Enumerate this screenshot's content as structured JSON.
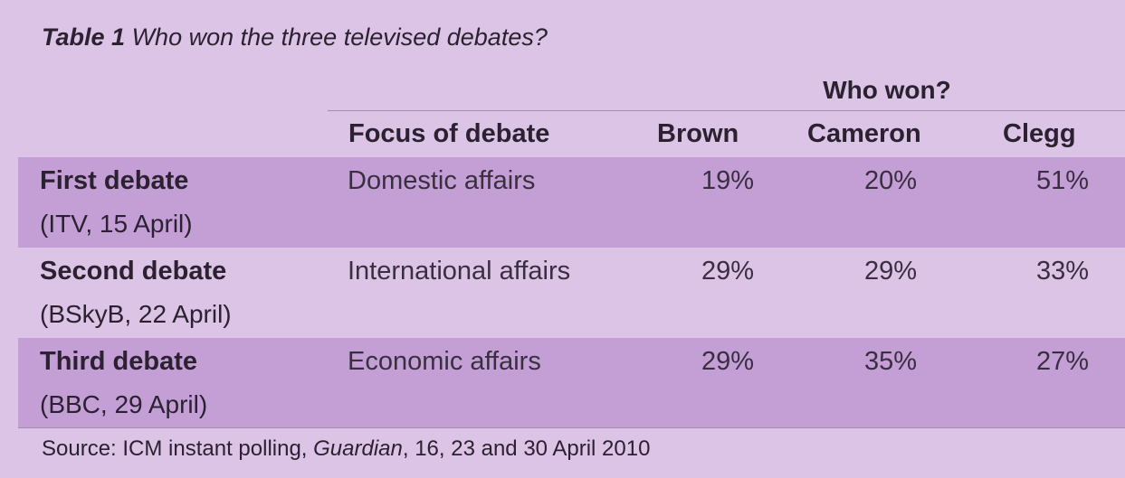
{
  "title": {
    "number": "Table 1",
    "text": "Who won the three televised debates?"
  },
  "group_header": "Who won?",
  "columns": {
    "focus": "Focus of debate",
    "brown": "Brown",
    "cameron": "Cameron",
    "clegg": "Clegg"
  },
  "rows": [
    {
      "name": "First debate",
      "sub": "(ITV, 15 April)",
      "focus": "Domestic affairs",
      "brown": "19%",
      "cameron": "20%",
      "clegg": "51%"
    },
    {
      "name": "Second debate",
      "sub": "(BSkyB, 22 April)",
      "focus": "International affairs",
      "brown": "29%",
      "cameron": "29%",
      "clegg": "33%"
    },
    {
      "name": "Third debate",
      "sub": "(BBC, 29 April)",
      "focus": "Economic affairs",
      "brown": "29%",
      "cameron": "35%",
      "clegg": "27%"
    }
  ],
  "source": {
    "prefix": "Source: ICM instant polling, ",
    "publication": "Guardian",
    "suffix": ", 16, 23 and 30 April 2010"
  },
  "colors": {
    "panel_background": "#dcc4e6",
    "shaded_row": "#c39fd6",
    "text": "#2b2130"
  }
}
